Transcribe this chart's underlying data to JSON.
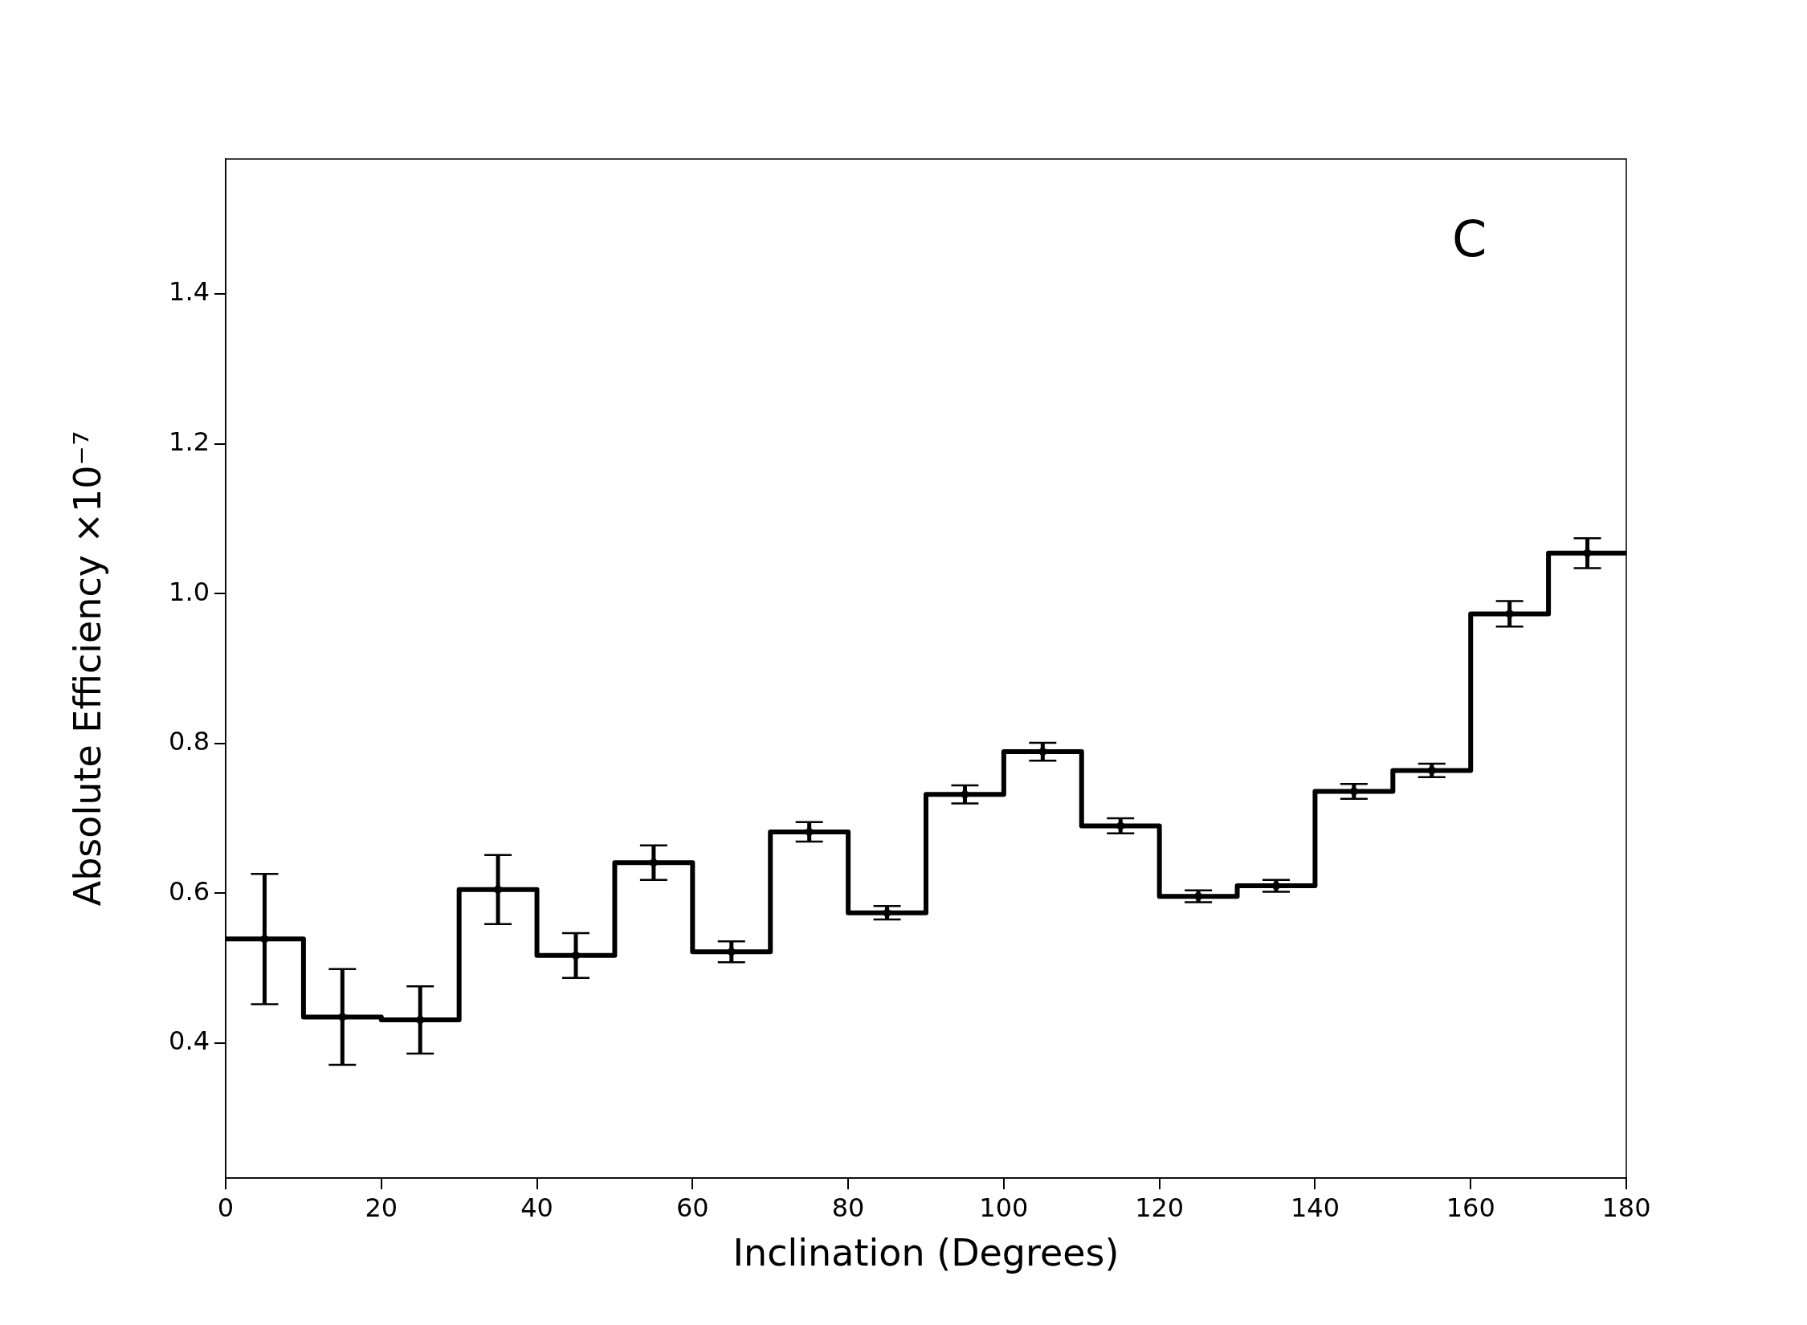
{
  "chart_data": {
    "type": "histogram",
    "xlabel": "Inclination (Degrees)",
    "ylabel": "Absolute Efficiency ×10⁻⁷",
    "annotations": [
      "C"
    ],
    "bins": [
      0,
      10,
      20,
      30,
      40,
      50,
      60,
      70,
      80,
      90,
      100,
      110,
      120,
      130,
      140,
      150,
      160,
      170,
      180
    ],
    "values": [
      0.539,
      0.435,
      0.431,
      0.605,
      0.517,
      0.641,
      0.522,
      0.682,
      0.574,
      0.732,
      0.789,
      0.69,
      0.596,
      0.61,
      0.736,
      0.764,
      0.973,
      1.054
    ],
    "color": "#000000",
    "series": [
      {
        "type": "scatter",
        "color": "#000000",
        "x": [
          5,
          15,
          25,
          35,
          45,
          55,
          65,
          75,
          85,
          95,
          105,
          115,
          125,
          135,
          145,
          155,
          165,
          175
        ],
        "values": [
          0.539,
          0.435,
          0.431,
          0.605,
          0.517,
          0.641,
          0.522,
          0.682,
          0.574,
          0.732,
          0.789,
          0.69,
          0.596,
          0.61,
          0.736,
          0.764,
          0.973,
          1.054
        ],
        "errors": [
          0.087,
          0.064,
          0.045,
          0.046,
          0.03,
          0.023,
          0.014,
          0.013,
          0.009,
          0.012,
          0.012,
          0.01,
          0.008,
          0.008,
          0.01,
          0.009,
          0.017,
          0.02
        ]
      }
    ],
    "marker": "circle",
    "xlim": [
      0,
      180
    ],
    "xticks": [
      0,
      20,
      40,
      60,
      80,
      100,
      120,
      140,
      160,
      180
    ],
    "ylim": [
      0.22,
      1.58
    ],
    "yticks": [
      0.4,
      0.6,
      0.8,
      {
        "value": 1,
        "label": "1.0"
      },
      1.2,
      1.4
    ],
    "grid": false,
    "legend": false
  }
}
